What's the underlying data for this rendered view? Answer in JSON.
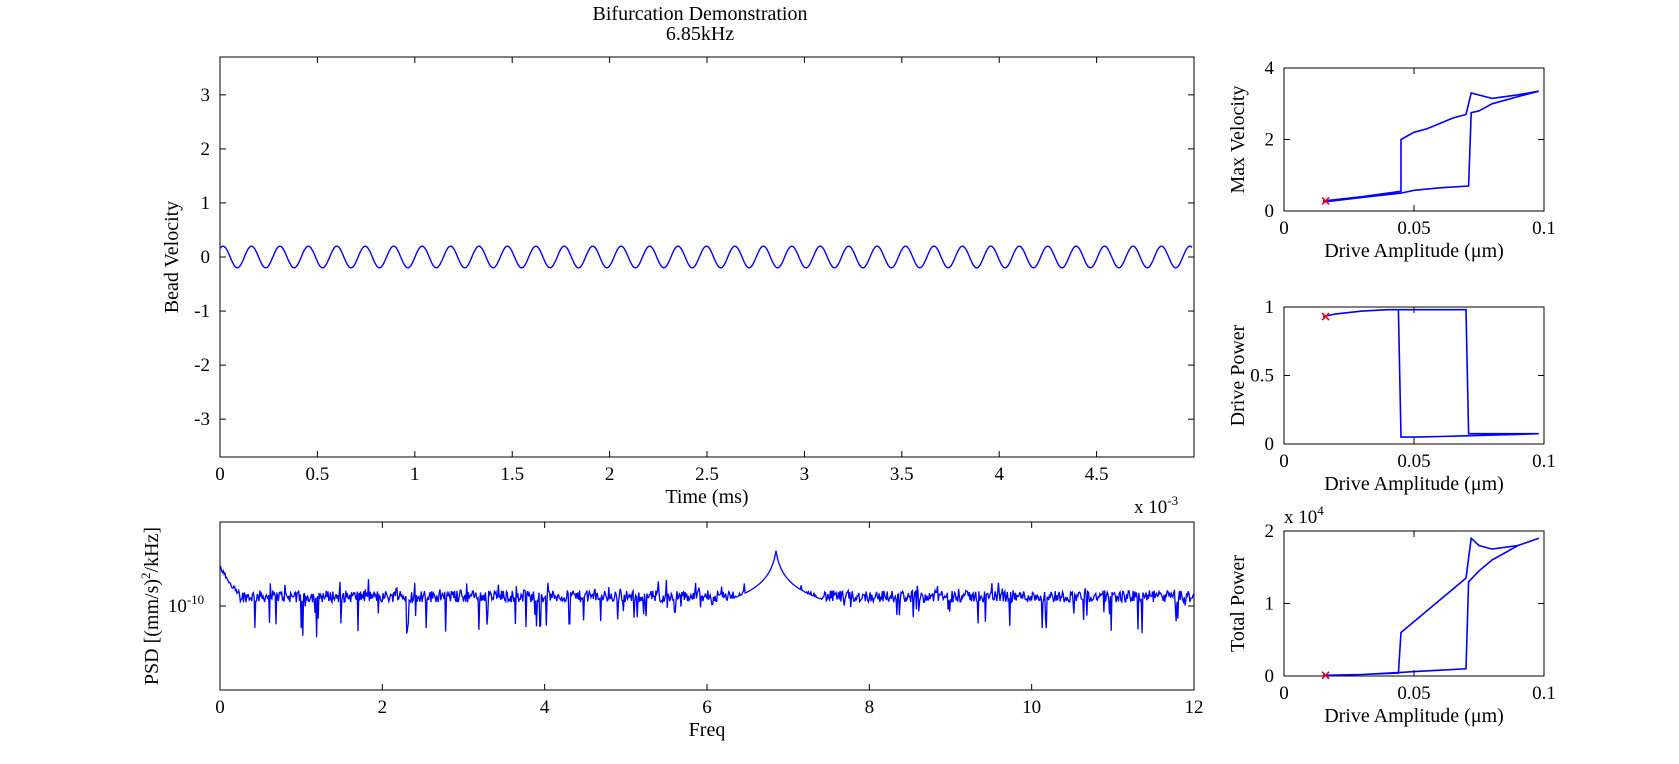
{
  "figure": {
    "title": "Bifurcation Demonstration",
    "subtitle": "6.85kHz"
  },
  "colors": {
    "line": "#0000ff",
    "marker": "#ff0000",
    "axis": "#000000"
  },
  "chart_data": [
    {
      "id": "velocity",
      "type": "line",
      "xlabel": "Time (ms)",
      "ylabel": "Bead Velocity",
      "x_multiplier": "x 10",
      "x_multiplier_exp": "-3",
      "xlim": [
        0,
        0.005
      ],
      "ylim": [
        -3.7,
        3.7
      ],
      "xticks": [
        "0",
        "0.5",
        "1",
        "1.5",
        "2",
        "2.5",
        "3",
        "3.5",
        "4",
        "4.5"
      ],
      "xtick_values": [
        0,
        0.0005,
        0.001,
        0.0015,
        0.002,
        0.0025,
        0.003,
        0.0035,
        0.004,
        0.0045
      ],
      "yticks": [
        "3",
        "2",
        "1",
        "0",
        "-1",
        "-2",
        "-3"
      ],
      "ytick_values": [
        3,
        2,
        1,
        0,
        -1,
        -2,
        -3
      ],
      "series": [
        {
          "frequency_hz": 6850,
          "amplitude": 0.2,
          "offset": 0,
          "x_range": [
            0,
            0.00499
          ]
        }
      ]
    },
    {
      "id": "psd",
      "type": "line",
      "xlabel": "Freq",
      "ylabel": "PSD [(mm/s)",
      "ylabel_sup": "2",
      "ylabel_tail": "/kHz]",
      "xlim": [
        0,
        12
      ],
      "ylim_log10": [
        -10.35,
        -9.65
      ],
      "xticks": [
        "0",
        "2",
        "4",
        "6",
        "8",
        "10",
        "12"
      ],
      "xtick_values": [
        0,
        2,
        4,
        6,
        8,
        10,
        12
      ],
      "ytick_base": "10",
      "ytick_exp": "-10",
      "ytick_log10": -10,
      "series": [
        {
          "noise_floor_log10": -9.96,
          "peak": {
            "x": 6.85,
            "log10": -9.77
          },
          "low_freq_spike": {
            "x": 0.02,
            "log10": -9.84
          }
        }
      ]
    },
    {
      "id": "maxvel",
      "type": "line",
      "xlabel": "Drive Amplitude (μm)",
      "ylabel": "Max Velocity",
      "xlim": [
        0,
        0.1
      ],
      "ylim": [
        0,
        4
      ],
      "xticks": [
        "0",
        "0.05",
        "0.1"
      ],
      "xtick_values": [
        0,
        0.05,
        0.1
      ],
      "yticks": [
        "0",
        "2",
        "4"
      ],
      "ytick_values": [
        0,
        2,
        4
      ],
      "series": [
        {
          "x": [
            0.015,
            0.03,
            0.045,
            0.045,
            0.05,
            0.055,
            0.06,
            0.065,
            0.07,
            0.072,
            0.08,
            0.09,
            0.098,
            0.09,
            0.08,
            0.075,
            0.072,
            0.071,
            0.06,
            0.05,
            0.045,
            0.03,
            0.015
          ],
          "y": [
            0.28,
            0.4,
            0.55,
            2.0,
            2.2,
            2.3,
            2.45,
            2.6,
            2.7,
            3.3,
            3.15,
            3.25,
            3.35,
            3.2,
            3.0,
            2.8,
            2.75,
            0.7,
            0.65,
            0.58,
            0.5,
            0.38,
            0.25
          ]
        }
      ],
      "marker": {
        "x": 0.016,
        "y": 0.28
      }
    },
    {
      "id": "drivepower",
      "type": "line",
      "xlabel": "Drive Amplitude (μm)",
      "ylabel": "Drive Power",
      "xlim": [
        0,
        0.1
      ],
      "ylim": [
        0,
        1
      ],
      "xticks": [
        "0",
        "0.05",
        "0.1"
      ],
      "xtick_values": [
        0,
        0.05,
        0.1
      ],
      "yticks": [
        "0",
        "0.5",
        "1"
      ],
      "ytick_values": [
        0,
        0.5,
        1
      ],
      "series": [
        {
          "x": [
            0.015,
            0.02,
            0.03,
            0.04,
            0.044,
            0.045,
            0.05,
            0.06,
            0.07,
            0.08,
            0.09,
            0.098,
            0.09,
            0.08,
            0.071,
            0.07,
            0.06,
            0.05,
            0.04,
            0.03,
            0.02,
            0.015
          ],
          "y": [
            0.93,
            0.95,
            0.97,
            0.98,
            0.98,
            0.05,
            0.05,
            0.055,
            0.06,
            0.065,
            0.07,
            0.075,
            0.075,
            0.075,
            0.075,
            0.98,
            0.98,
            0.98,
            0.98,
            0.97,
            0.95,
            0.93
          ]
        }
      ],
      "marker": {
        "x": 0.016,
        "y": 0.93
      }
    },
    {
      "id": "totalpower",
      "type": "line",
      "xlabel": "Drive Amplitude (μm)",
      "ylabel": "Total Power",
      "y_multiplier": "x 10",
      "y_multiplier_exp": "4",
      "xlim": [
        0,
        0.1
      ],
      "ylim": [
        0,
        2
      ],
      "xticks": [
        "0",
        "0.05",
        "0.1"
      ],
      "xtick_values": [
        0,
        0.05,
        0.1
      ],
      "yticks": [
        "0",
        "1",
        "2"
      ],
      "ytick_values": [
        0,
        1,
        2
      ],
      "series": [
        {
          "x": [
            0.015,
            0.03,
            0.044,
            0.045,
            0.05,
            0.055,
            0.06,
            0.065,
            0.07,
            0.072,
            0.075,
            0.08,
            0.09,
            0.098,
            0.09,
            0.08,
            0.075,
            0.071,
            0.07,
            0.06,
            0.05,
            0.045,
            0.03,
            0.015
          ],
          "y": [
            0.01,
            0.02,
            0.04,
            0.6,
            0.75,
            0.9,
            1.05,
            1.2,
            1.35,
            1.9,
            1.8,
            1.75,
            1.8,
            1.9,
            1.8,
            1.6,
            1.45,
            1.3,
            0.1,
            0.08,
            0.06,
            0.05,
            0.02,
            0.01
          ]
        }
      ],
      "marker": {
        "x": 0.016,
        "y": 0.01
      }
    }
  ]
}
